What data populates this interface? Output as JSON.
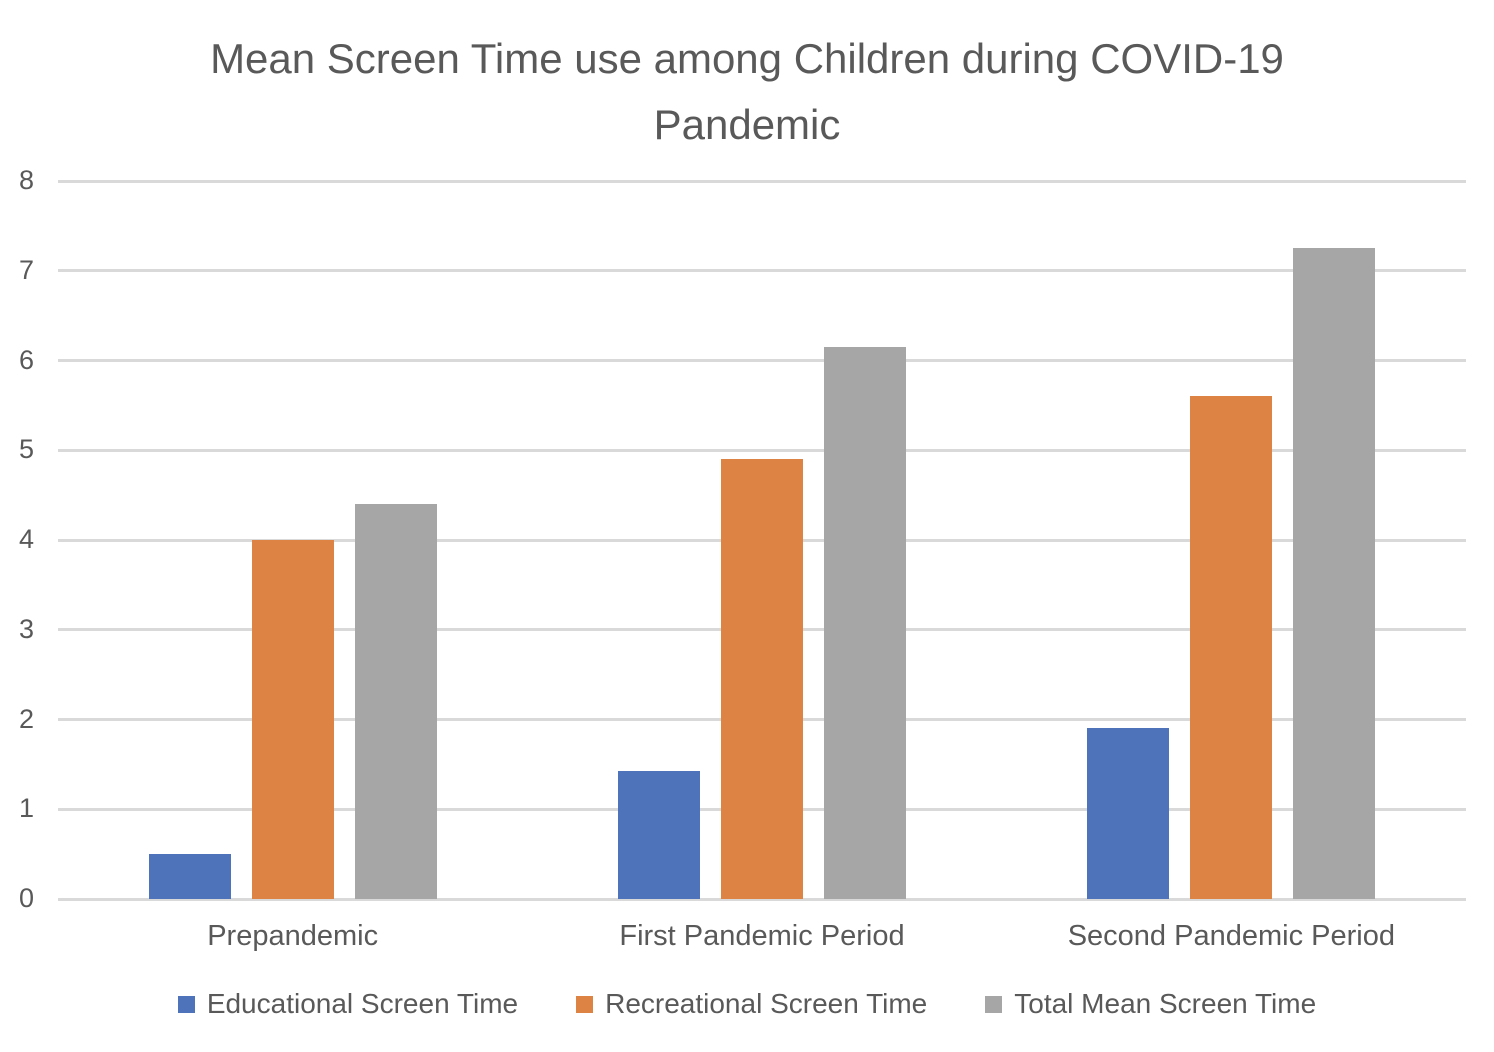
{
  "chart_data": {
    "type": "bar",
    "title": "Mean Screen Time use among Children during COVID-19 Pandemic",
    "categories": [
      "Prepandemic",
      "First Pandemic Period",
      "Second Pandemic Period"
    ],
    "series": [
      {
        "name": "Educational Screen Time",
        "color": "#4F73BA",
        "values": [
          0.5,
          1.43,
          1.9
        ]
      },
      {
        "name": "Recreational Screen Time",
        "color": "#DD8344",
        "values": [
          4.0,
          4.9,
          5.6
        ]
      },
      {
        "name": "Total Mean Screen Time",
        "color": "#A6A6A6",
        "values": [
          4.4,
          6.15,
          7.25
        ]
      }
    ],
    "xlabel": "",
    "ylabel": "",
    "ylim": [
      0,
      8
    ],
    "yticks": [
      0,
      1,
      2,
      3,
      4,
      5,
      6,
      7,
      8
    ],
    "grid": true,
    "legend_position": "bottom"
  },
  "style": {
    "text_color": "#595959",
    "gridline_color": "#d9d9d9",
    "background": "#ffffff"
  }
}
